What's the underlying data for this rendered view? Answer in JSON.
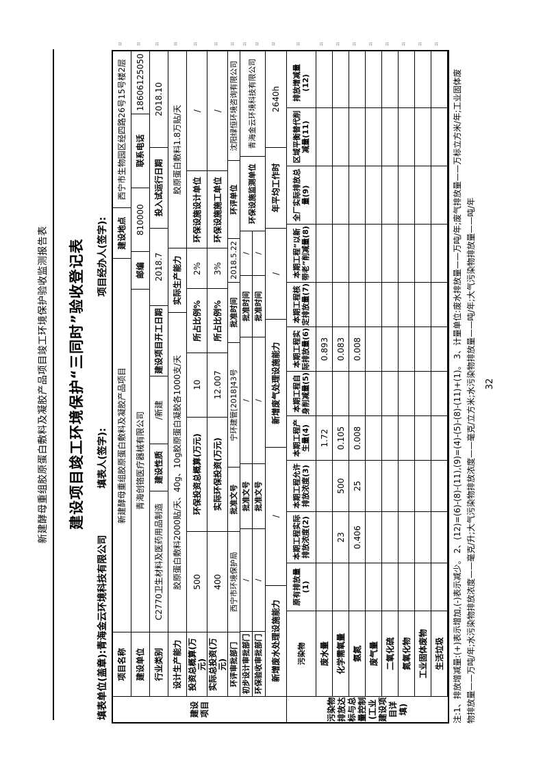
{
  "page": {
    "number": "32"
  },
  "header": {
    "running_title": "新建酵母重组胶原蛋白敷料及凝胶产品项目竣工环境保护验收监测报告表"
  },
  "form": {
    "title": "建设项目竣工环境保护“三同时”验收登记表",
    "filler": {
      "unit_label": "填表单位(盖章):",
      "unit_value": "青海金云环境科技有限公司",
      "person_label": "填表人(签字):",
      "agent_label": "项目经办人(签字):"
    },
    "section_project": {
      "label": "建设项目",
      "r1": {
        "c1": "项目名称",
        "v1": "新建酵母重组胶原蛋白敷料及凝胶产品项目",
        "c2": "建设地点",
        "v2": "西宁市生物园区经四路26号15号楼2层"
      },
      "r2": {
        "c1": "建设单位",
        "v1": "青海创铬医疗器械有限公司",
        "c2": "邮编",
        "v2": "810000",
        "c3": "联系电话",
        "v3": "18606125050"
      },
      "r3": {
        "c1": "行业类别",
        "v1": "C2770卫生材料及医药用品制造",
        "c2": "建设性质",
        "v2": "/新建",
        "c3": "建设项目开工日期",
        "v3": "2018.7",
        "c4": "投入试运行日期",
        "v4": "2018.10"
      },
      "r4": {
        "c1": "设计生产能力",
        "v1": "胶原蛋白敷料2000贴/天、40g、10g胶原蛋白凝胶各1000支/天",
        "c2": "实际生产能力",
        "v2": "胶原蛋白敷料1.8万贴/天"
      },
      "r5": {
        "c1": "投资总概算(万元)",
        "v1": "500",
        "c2": "环保投资总概算(万元)",
        "v2": "10",
        "c3": "所占比例%",
        "v3": "2%",
        "c4": "环保设施设计单位",
        "v4": "/"
      },
      "r6": {
        "c1": "实际总投资(万元)",
        "v1": "400",
        "c2": "实际环保投资(万元)",
        "v2": "12.007",
        "c3": "所占比例%",
        "v3": "3%",
        "c4": "环保设施施工单位",
        "v4": "/"
      },
      "r7": {
        "c1": "环评审批部门",
        "v1": "西宁市环境保护局",
        "c2": "批准文号",
        "v2": "宁环建管[2018]43号",
        "c3": "批准时间",
        "v3": "2018.5.22",
        "c4": "环评单位",
        "v4": "沈阳绿恒环境咨询有限公司"
      },
      "r8": {
        "c1": "初步设计审批部门",
        "v1": "/",
        "c2": "批准文号",
        "v2": "/",
        "c3": "批准时间",
        "v3": "/",
        "c4": "环保设施监测单位",
        "v4": "青海金云环境科技有限公司"
      },
      "r9": {
        "c1": "环保验收审批部门",
        "v1": "/",
        "c2": "批准文号",
        "v2": "/",
        "c3": "批准时间",
        "v3": "/"
      },
      "r10": {
        "c1": "新增废水处理设施能力",
        "v1": "/",
        "c2": "新增废气处理设施能力",
        "v2": "/",
        "c3": "年平均工作时",
        "v3": "2640h"
      }
    },
    "section_pollutants": {
      "label": "污染物排放达标与总量控制(工业建设项目详填)",
      "columns": [
        "污染物",
        "原有排放量(1)",
        "本期工程实际排放浓度(2)",
        "本期工程允许排放浓度(3)",
        "本期工程产生量(4)",
        "本期工程自身削减量(5)",
        "本期工程实际排放量(6)",
        "本期工程核定排放量(7)",
        "本期工程“以新带老”削减量(8)",
        "全厂实际排放总量(9)",
        "区域平衡替代削减量(11)",
        "排放增减量(12)"
      ],
      "rows": [
        {
          "name": "废水量",
          "values": [
            "",
            "",
            "",
            "1.72",
            "",
            "0.893",
            "",
            "",
            "",
            "",
            ""
          ]
        },
        {
          "name": "化学需氧量",
          "values": [
            "",
            "23",
            "500",
            "0.105",
            "",
            "0.083",
            "",
            "",
            "",
            "",
            ""
          ]
        },
        {
          "name": "氨氮",
          "values": [
            "",
            "0.406",
            "25",
            "0.008",
            "",
            "0.008",
            "",
            "",
            "",
            "",
            ""
          ]
        },
        {
          "name": "废气量",
          "values": [
            "",
            "",
            "",
            "",
            "",
            "",
            "",
            "",
            "",
            "",
            ""
          ]
        },
        {
          "name": "二氧化硫",
          "values": [
            "",
            "",
            "",
            "",
            "",
            "",
            "",
            "",
            "",
            "",
            ""
          ]
        },
        {
          "name": "氮氧化物",
          "values": [
            "",
            "",
            "",
            "",
            "",
            "",
            "",
            "",
            "",
            "",
            ""
          ]
        },
        {
          "name": "工业固体废物",
          "values": [
            "",
            "",
            "",
            "",
            "",
            "",
            "",
            "",
            "",
            "",
            ""
          ]
        },
        {
          "name": "生活垃圾",
          "values": [
            "",
            "",
            "",
            "",
            "",
            "",
            "",
            "",
            "",
            "",
            ""
          ]
        }
      ]
    },
    "notes": [
      "注:1、排放增减量:(+)表示增加,(-)表示减少。 2、(12)=(6)-(8)-(11),(9)=(4)-(5)-(8)-(11)+(1)。 3、计量单位:废水排放量——万吨/年;废气排放量——万标立方米/年;工业固体废",
      "物排放量——万吨/年;水污染物排放浓度——毫克/升;大气污染物排放浓度——毫克/立方米;水污染物排放量——吨/年;大气污染物排放量——吨/年"
    ]
  }
}
